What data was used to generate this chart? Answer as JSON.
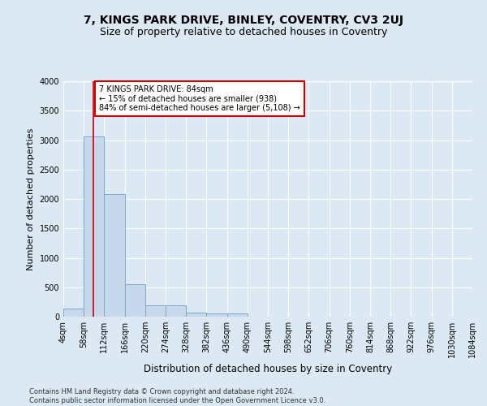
{
  "title": "7, KINGS PARK DRIVE, BINLEY, COVENTRY, CV3 2UJ",
  "subtitle": "Size of property relative to detached houses in Coventry",
  "xlabel": "Distribution of detached houses by size in Coventry",
  "ylabel": "Number of detached properties",
  "footer_line1": "Contains HM Land Registry data © Crown copyright and database right 2024.",
  "footer_line2": "Contains public sector information licensed under the Open Government Licence v3.0.",
  "bar_edges": [
    4,
    58,
    112,
    166,
    220,
    274,
    328,
    382,
    436,
    490,
    544,
    598,
    652,
    706,
    760,
    814,
    868,
    922,
    976,
    1030,
    1084
  ],
  "bar_heights": [
    140,
    3060,
    2080,
    550,
    190,
    190,
    70,
    55,
    55,
    0,
    0,
    0,
    0,
    0,
    0,
    0,
    0,
    0,
    0,
    0
  ],
  "bar_color": "#c8d8ec",
  "bar_edge_color": "#7aaac8",
  "property_size": 84,
  "property_line_color": "#cc0000",
  "annotation_text": "7 KINGS PARK DRIVE: 84sqm\n← 15% of detached houses are smaller (938)\n84% of semi-detached houses are larger (5,108) →",
  "annotation_box_color": "#ffffff",
  "annotation_box_edge": "#cc0000",
  "ylim": [
    0,
    4000
  ],
  "yticks": [
    0,
    500,
    1000,
    1500,
    2000,
    2500,
    3000,
    3500,
    4000
  ],
  "background_color": "#dce8f4",
  "grid_color": "#ffffff",
  "title_fontsize": 10,
  "subtitle_fontsize": 9,
  "xlabel_fontsize": 8.5,
  "ylabel_fontsize": 8,
  "tick_fontsize": 7,
  "footer_fontsize": 6,
  "annotation_fontsize": 7
}
